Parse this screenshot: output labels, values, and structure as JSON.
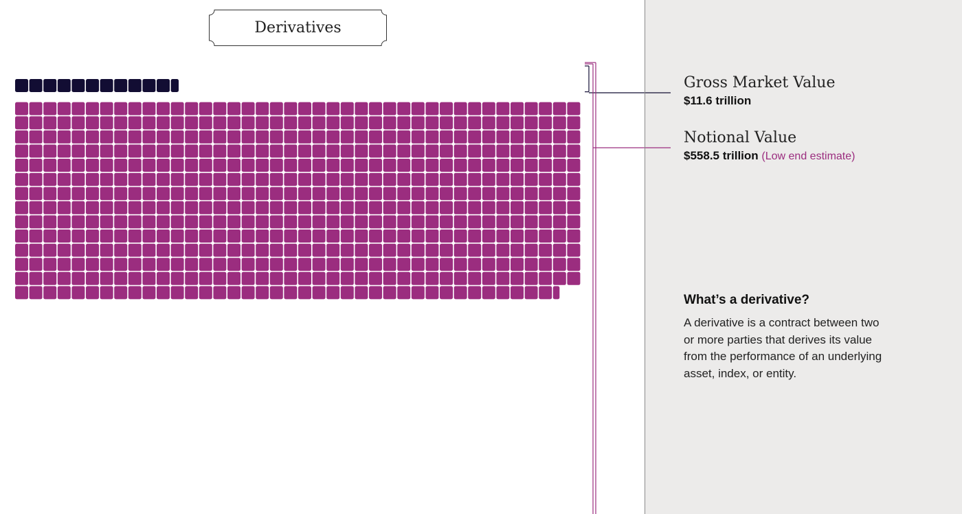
{
  "title": "Derivatives",
  "legend": {
    "gross_market_value": {
      "title": "Gross Market Value",
      "value": "$11.6 trillion"
    },
    "notional_value": {
      "title": "Notional Value",
      "value": "$558.5 trillion",
      "note": "(Low end estimate)"
    }
  },
  "explainer": {
    "heading": "What’s a derivative?",
    "body": "A derivative is a contract between two or more parties that derives its value from the performance of an underlying asset, index, or entity."
  },
  "colors": {
    "gross_market_value": "#120d33",
    "notional_value": "#9b2d7f",
    "panel_background": "#ecebea"
  },
  "chart_data": {
    "type": "waffle",
    "unit": "$ trillion",
    "columns": 40,
    "series": [
      {
        "name": "Gross Market Value",
        "value": 11.6,
        "color": "#120d33"
      },
      {
        "name": "Notional Value",
        "value": 558.5,
        "color": "#9b2d7f"
      }
    ]
  }
}
